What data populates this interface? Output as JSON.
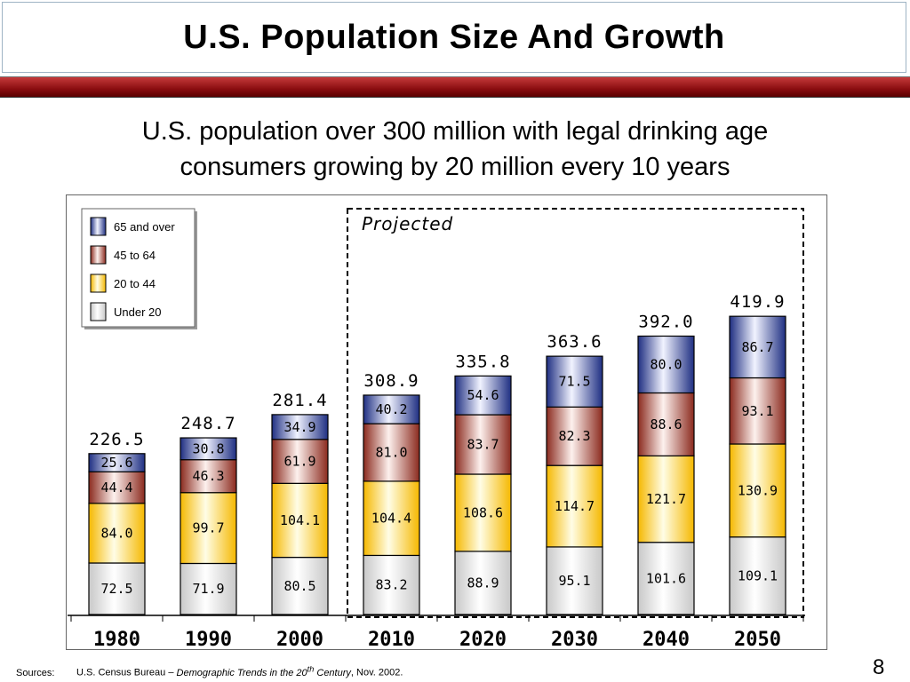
{
  "slide": {
    "title": "U.S. Population Size And Growth",
    "subtitle_line1": "U.S. population over 300 million with legal drinking age",
    "subtitle_line2": "consumers growing by 20 million every 10 years",
    "sources_label": "Sources:",
    "sources_text_1": "U.S. Census Bureau – ",
    "sources_italic": "Demographic Trends in the 20",
    "sources_sup": "th",
    "sources_italic_2": " Century",
    "sources_text_2": ", Nov. 2002.",
    "page_number": "8",
    "band_color": "#8a0d10"
  },
  "chart_data": {
    "type": "bar",
    "stacked": true,
    "categories": [
      "1980",
      "1990",
      "2000",
      "2010",
      "2020",
      "2030",
      "2040",
      "2050"
    ],
    "series": [
      {
        "name": "Under 20",
        "color": "#f2f2f2",
        "values": [
          72.5,
          71.9,
          80.5,
          83.2,
          88.9,
          95.1,
          101.6,
          109.1
        ],
        "labels": [
          "72.5",
          "71.9",
          "80.5",
          "83.2",
          "88.9",
          "95.1",
          "101.6",
          "109.1"
        ]
      },
      {
        "name": "20 to 44",
        "color": "#ffd84a",
        "values": [
          84.0,
          99.7,
          104.1,
          104.4,
          108.6,
          114.7,
          121.7,
          130.9
        ],
        "labels": [
          "84.0",
          "99.7",
          "104.1",
          "104.4",
          "108.6",
          "114.7",
          "121.7",
          "130.9"
        ]
      },
      {
        "name": "45 to 64",
        "color": "#9c3a2e",
        "values": [
          44.4,
          46.3,
          61.9,
          81.0,
          83.7,
          82.3,
          88.6,
          93.1
        ],
        "labels": [
          "44.4",
          "46.3",
          "61.9",
          "81.0",
          "83.7",
          "82.3",
          "88.6",
          "93.1"
        ]
      },
      {
        "name": "65 and over",
        "color": "#2c3f8c",
        "values": [
          25.6,
          30.8,
          34.9,
          40.2,
          54.6,
          71.5,
          80.0,
          86.7
        ],
        "labels": [
          "25.6",
          "30.8",
          "34.9",
          "40.2",
          "54.6",
          "71.5",
          "80.0",
          "86.7"
        ]
      }
    ],
    "totals": [
      "226.5",
      "248.7",
      "281.4",
      "308.9",
      "335.8",
      "363.6",
      "392.0",
      "419.9"
    ],
    "legend": {
      "position": "top-left",
      "order": [
        "65 and over",
        "45 to 64",
        "20 to 44",
        "Under 20"
      ]
    },
    "projected_label": "Projected",
    "projected_from": "2010",
    "ylim": [
      0,
      420
    ],
    "grid": false,
    "title": "",
    "xlabel": "",
    "ylabel": ""
  }
}
